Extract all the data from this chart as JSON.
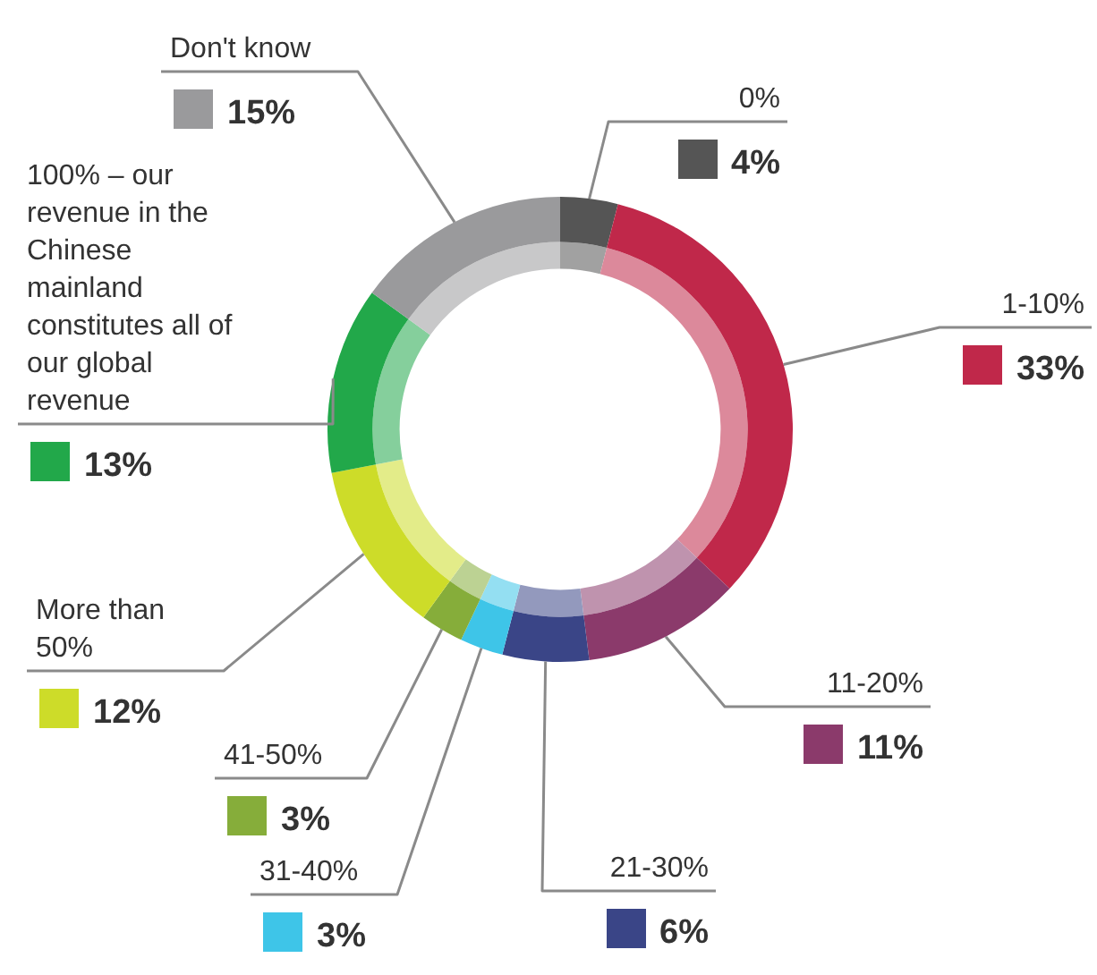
{
  "chart_data": {
    "type": "donut",
    "categories": [
      "0%",
      "1-10%",
      "11-20%",
      "21-30%",
      "31-40%",
      "41-50%",
      "More than 50%",
      "100% – our revenue in the Chinese mainland constitutes all of our global revenue",
      "Don't know"
    ],
    "series": [
      {
        "values": [
          4,
          33,
          11,
          6,
          3,
          3,
          12,
          13,
          15
        ],
        "colors": [
          "#555555",
          "#c0284a",
          "#8b3a6b",
          "#3a4587",
          "#3ec5e8",
          "#86ad3a",
          "#cddc29",
          "#22a84a",
          "#9a9a9c"
        ]
      },
      {
        "values": [
          4,
          33,
          11,
          6,
          3,
          3,
          12,
          13,
          15
        ],
        "colors": [
          "#a1a1a1",
          "#dc899b",
          "#bf93ae",
          "#9399bd",
          "#94dff2",
          "#bcd293",
          "#e3ec89",
          "#85cf9c",
          "#c8c8c9"
        ]
      }
    ],
    "value_labels": [
      "4%",
      "33%",
      "11%",
      "6%",
      "3%",
      "3%",
      "12%",
      "13%",
      "15%"
    ]
  }
}
